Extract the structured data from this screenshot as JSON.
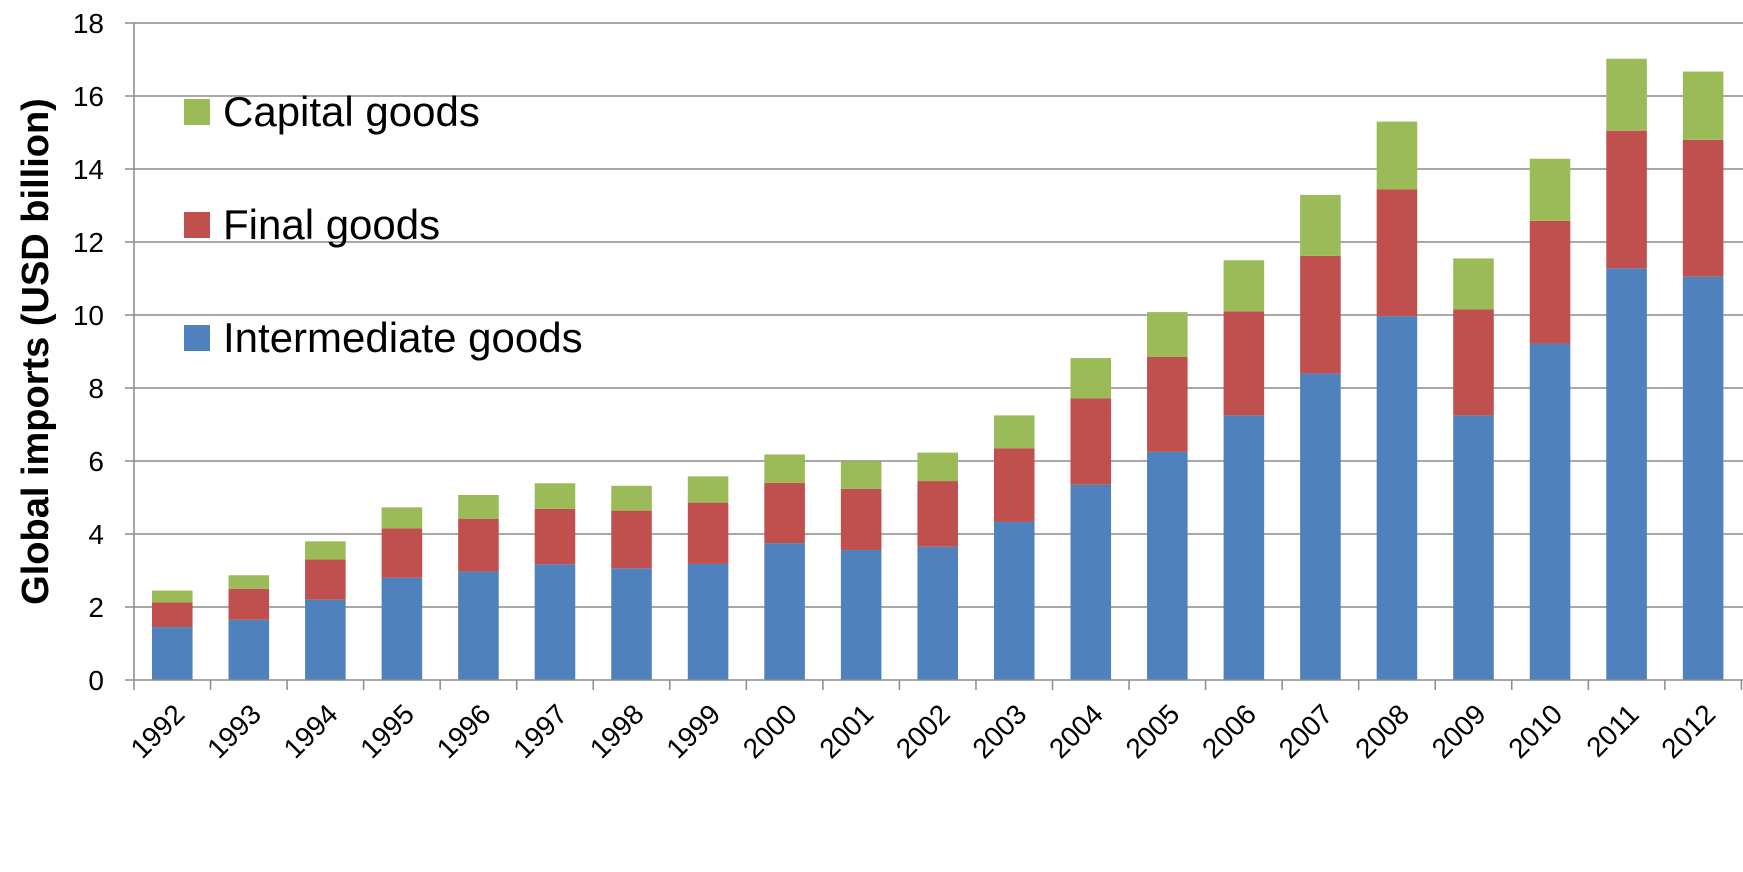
{
  "chart_data": {
    "type": "bar",
    "stacked": true,
    "title": "",
    "xlabel": "",
    "ylabel": "Global imports (USD billion)",
    "ylim": [
      0,
      18
    ],
    "yticks": [
      0,
      2,
      4,
      6,
      8,
      10,
      12,
      14,
      16,
      18
    ],
    "grid": true,
    "legend_position": "top-left",
    "categories": [
      "1992",
      "1993",
      "1994",
      "1995",
      "1996",
      "1997",
      "1998",
      "1999",
      "2000",
      "2001",
      "2002",
      "2003",
      "2004",
      "2005",
      "2006",
      "2007",
      "2008",
      "2009",
      "2010",
      "2011",
      "2012"
    ],
    "series": [
      {
        "name": "Intermediate goods",
        "color": "#4F81BD",
        "values": [
          1.45,
          1.65,
          2.2,
          2.8,
          2.97,
          3.17,
          3.06,
          3.18,
          3.75,
          3.56,
          3.65,
          4.33,
          5.35,
          6.25,
          7.25,
          8.4,
          9.97,
          7.25,
          9.22,
          11.28,
          11.05
        ]
      },
      {
        "name": "Final goods",
        "color": "#C0504D",
        "values": [
          0.68,
          0.85,
          1.1,
          1.35,
          1.45,
          1.52,
          1.58,
          1.68,
          1.65,
          1.68,
          1.8,
          2.02,
          2.37,
          2.6,
          2.85,
          3.22,
          3.47,
          2.9,
          3.36,
          3.77,
          3.75
        ]
      },
      {
        "name": "Capital goods",
        "color": "#9BBB59",
        "values": [
          0.32,
          0.37,
          0.5,
          0.58,
          0.65,
          0.7,
          0.68,
          0.72,
          0.78,
          0.75,
          0.78,
          0.9,
          1.1,
          1.23,
          1.4,
          1.67,
          1.86,
          1.4,
          1.7,
          1.97,
          1.87
        ]
      }
    ]
  }
}
